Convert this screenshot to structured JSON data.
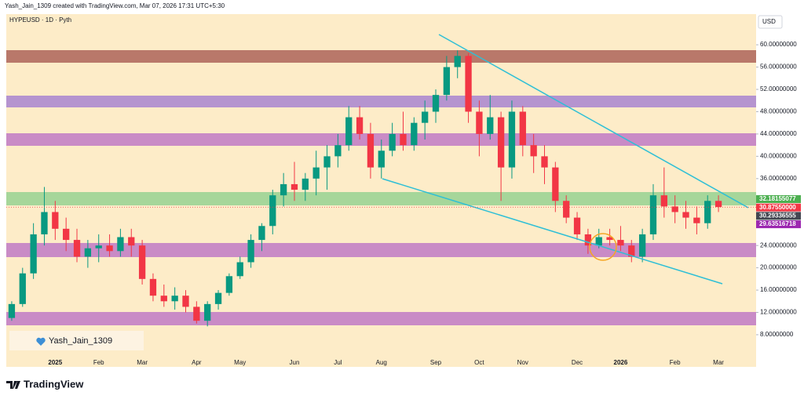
{
  "header": {
    "credit": "Yash_Jain_1309 created with TradingView.com, Mar 07, 2026 17:31 UTC+5:30"
  },
  "watermark": "Yash_Jain_1309",
  "brand": "TradingView",
  "chart_data": {
    "type": "candlestick",
    "title": "HYPEUSD · 1D · Pyth",
    "currency": "USD",
    "up_color": "#089981",
    "down_color": "#f23645",
    "categories": [
      null,
      null,
      null,
      null,
      "2025",
      null,
      null,
      null,
      "Feb",
      null,
      null,
      null,
      "Mar",
      null,
      null,
      null,
      null,
      "Apr",
      null,
      null,
      null,
      "May",
      null,
      null,
      null,
      null,
      "Jun",
      null,
      null,
      null,
      "Jul",
      null,
      null,
      null,
      "Aug",
      null,
      null,
      null,
      null,
      "Sep",
      null,
      null,
      null,
      "Oct",
      null,
      null,
      null,
      "Nov",
      null,
      null,
      null,
      null,
      "Dec",
      null,
      null,
      null,
      "2026",
      null,
      null,
      null,
      null,
      "Feb",
      null,
      null,
      null,
      "Mar"
    ],
    "open": [
      11,
      13.5,
      19,
      26,
      30,
      27,
      25,
      22,
      23.5,
      24,
      23,
      25.5,
      24,
      18,
      15,
      14,
      15,
      13,
      10.5,
      13.5,
      15.5,
      18.5,
      21,
      25,
      27.5,
      33,
      35,
      34,
      36,
      38,
      40,
      42,
      47,
      44,
      38,
      41,
      44,
      42,
      46,
      48,
      51,
      56,
      58,
      48,
      44,
      47,
      38,
      48,
      42,
      40,
      38,
      32,
      29,
      26,
      24,
      25.5,
      25,
      24,
      22,
      26,
      33,
      31,
      30,
      29,
      28,
      32
    ],
    "high": [
      14,
      20,
      28,
      34.5,
      32,
      29,
      27,
      25,
      26,
      26,
      27,
      27,
      25,
      19,
      17,
      16.5,
      16,
      14,
      14,
      16,
      19,
      22,
      26,
      28,
      34,
      37,
      39,
      37,
      41,
      42,
      44,
      49,
      49,
      46,
      43,
      46,
      48,
      47,
      50,
      52,
      58,
      59,
      58.5,
      50,
      51,
      48,
      50,
      49,
      44,
      42,
      39,
      33,
      30,
      27,
      27,
      27,
      27.5,
      25,
      27,
      35,
      38,
      33,
      32,
      31,
      33,
      33
    ],
    "low": [
      10.5,
      13,
      18,
      24,
      25,
      23,
      21,
      20,
      21,
      22,
      22,
      22,
      17,
      14,
      13,
      12.5,
      12,
      10,
      9.5,
      12.5,
      15,
      18,
      20,
      23,
      26,
      31,
      32,
      32,
      33,
      34,
      38,
      41,
      43,
      36,
      36,
      40,
      41,
      41,
      43,
      46,
      50,
      54,
      46,
      40,
      43,
      32,
      36,
      40,
      37,
      35,
      30,
      28,
      25,
      22.5,
      23.5,
      24,
      23,
      21,
      21,
      25,
      29,
      28,
      27,
      26,
      27,
      30
    ],
    "close": [
      13.5,
      19,
      26,
      30,
      27,
      25,
      22,
      23.5,
      24,
      23,
      25.5,
      24,
      18,
      15,
      14,
      15,
      13,
      10.5,
      13.5,
      15.5,
      18.5,
      21,
      25,
      27.5,
      33,
      35,
      34,
      36,
      38,
      40,
      42,
      47,
      44,
      38,
      41,
      44,
      42,
      46,
      48,
      51,
      56,
      58,
      48,
      44,
      47,
      38,
      48,
      42,
      40,
      38,
      32,
      29,
      26,
      24,
      25.5,
      25,
      24,
      22,
      26,
      33,
      31,
      30,
      29,
      28,
      32,
      30.9
    ],
    "ylim": [
      4.06,
      65.5
    ],
    "yticks": [
      {
        "value": 8,
        "label": "8.00000000"
      },
      {
        "value": 12,
        "label": "12.00000000"
      },
      {
        "value": 16,
        "label": "16.00000000"
      },
      {
        "value": 20,
        "label": "20.00000000"
      },
      {
        "value": 24,
        "label": "24.00000000"
      },
      {
        "value": 28,
        "label": "28.00000000"
      },
      {
        "value": 32,
        "label": "32.00000000"
      },
      {
        "value": 36,
        "label": "36.00000000"
      },
      {
        "value": 40,
        "label": "40.00000000"
      },
      {
        "value": 44,
        "label": "44.00000000"
      },
      {
        "value": 48,
        "label": "48.00000000"
      },
      {
        "value": 52,
        "label": "52.00000000"
      },
      {
        "value": 56,
        "label": "56.00000000"
      },
      {
        "value": 60,
        "label": "60.00000000"
      }
    ],
    "price_labels": [
      {
        "value": 32.18155077,
        "label": "32.18155077",
        "color": "#4caf50"
      },
      {
        "value": 30.8755,
        "label": "30.87550000",
        "color": "#f23645"
      },
      {
        "value": 30.29336555,
        "label": "30.29336555",
        "color": "#434651"
      },
      {
        "value": 29.63516718,
        "label": "29.63516718",
        "color": "#9c27b0"
      }
    ]
  }
}
